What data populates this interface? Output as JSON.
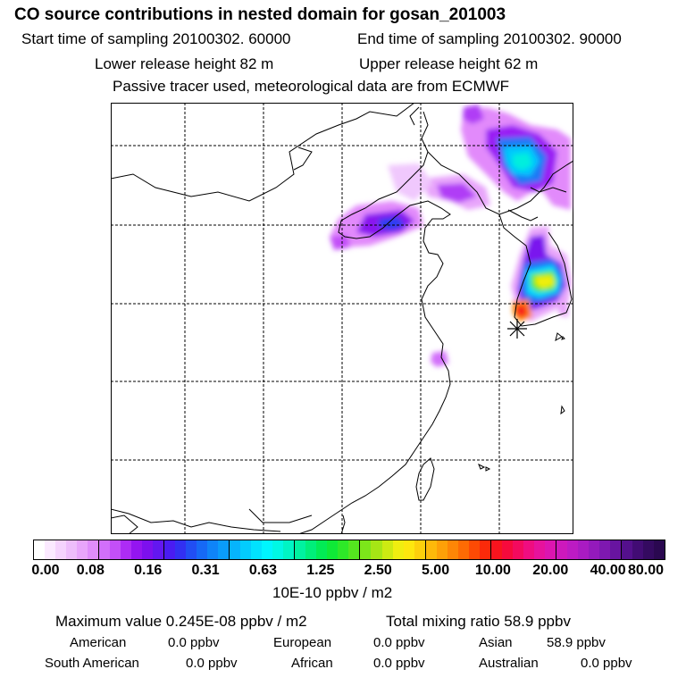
{
  "title": "CO  source contributions in nested domain for gosan_201003",
  "start_time": "Start time of sampling 20100302. 60000",
  "end_time": "End time of sampling 20100302. 90000",
  "lower_release": "Lower release height   82 m",
  "upper_release": "Upper release height   62 m",
  "tracer_note": "Passive tracer used, meteorological data are from ECMWF",
  "colorbar": {
    "units": "10E-10 ppbv / m2",
    "ticks": [
      "0.00",
      "0.08",
      "0.16",
      "0.31",
      "0.63",
      "1.25",
      "2.50",
      "5.00",
      "10.00",
      "20.00",
      "40.00",
      "80.00"
    ],
    "colors": [
      "#ffffff",
      "#fbe9ff",
      "#f5d3fd",
      "#eebdfb",
      "#e8a5fb",
      "#df8cfb",
      "#d26ffa",
      "#c34ff8",
      "#ad2cf5",
      "#9415f0",
      "#7d10ee",
      "#6317f0",
      "#4a1cf2",
      "#3230f2",
      "#214ef3",
      "#1669f6",
      "#0f84f8",
      "#0a9cfa",
      "#06b4fc",
      "#03ccfd",
      "#01e2fe",
      "#00f5fe",
      "#00f8e4",
      "#00f5c4",
      "#00f2a0",
      "#00ee7a",
      "#02eb55",
      "#0fe937",
      "#2ee828",
      "#54e61f",
      "#7ce61a",
      "#a6e615",
      "#cdea12",
      "#f0ee10",
      "#fde70e",
      "#fdd00c",
      "#fdb90a",
      "#fda008",
      "#fd8606",
      "#fd6b04",
      "#fd4a04",
      "#fb2a0a",
      "#f8141e",
      "#f60a3c",
      "#f30a5e",
      "#ef0d80",
      "#e7129c",
      "#dc15b0",
      "#cd19bc",
      "#bc1bc3",
      "#a91bc2",
      "#941abb",
      "#7e18b0",
      "#6814a0",
      "#54108c",
      "#420c74",
      "#340a60",
      "#2a0850"
    ]
  },
  "summary": {
    "max_value": "Maximum value  0.245E-08 ppbv / m2",
    "total_mixing": "Total mixing ratio       58.9 ppbv"
  },
  "regions": [
    {
      "name": "American",
      "value": "0.0 ppbv"
    },
    {
      "name": "European",
      "value": "0.0 ppbv"
    },
    {
      "name": "Asian",
      "value": "58.9 ppbv"
    },
    {
      "name": "South American",
      "value": "0.0 ppbv"
    },
    {
      "name": "African",
      "value": "0.0 ppbv"
    },
    {
      "name": "Australian",
      "value": "0.0 ppbv"
    }
  ]
}
